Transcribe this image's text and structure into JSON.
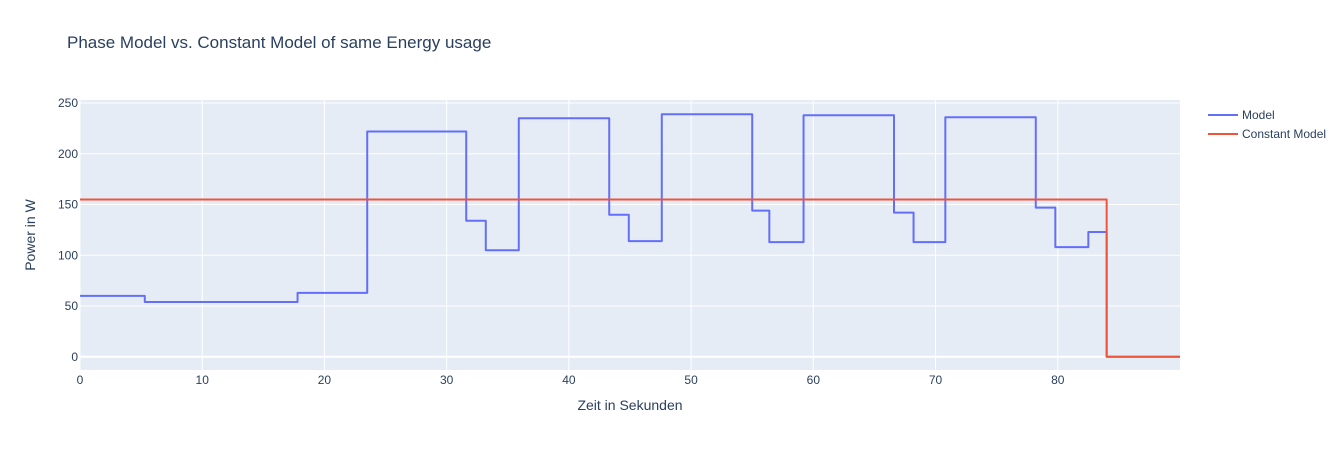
{
  "chart_data": {
    "type": "line",
    "title": "Phase Model vs. Constant Model of same Energy usage",
    "xlabel": "Zeit in Sekunden",
    "ylabel": "Power in W",
    "xlim": [
      0,
      90
    ],
    "ylim": [
      -13,
      253
    ],
    "x_ticks": [
      0,
      10,
      20,
      30,
      40,
      50,
      60,
      70,
      80
    ],
    "y_ticks": [
      0,
      50,
      100,
      150,
      200,
      250
    ],
    "grid": true,
    "legend_position": "top-right",
    "line_shape": "step",
    "series": [
      {
        "name": "Model",
        "color": "#636efa",
        "x": [
          0,
          5.3,
          17.8,
          23.5,
          31.6,
          33.2,
          35.9,
          43.3,
          44.9,
          47.6,
          55.0,
          56.4,
          59.2,
          66.6,
          68.2,
          70.8,
          78.2,
          79.8,
          82.5,
          84.0,
          90
        ],
        "y": [
          60,
          54,
          63,
          222,
          134,
          105,
          235,
          140,
          114,
          239,
          144,
          113,
          238,
          142,
          113,
          236,
          147,
          108,
          123,
          0,
          0
        ]
      },
      {
        "name": "Constant Model",
        "color": "#ef553b",
        "x": [
          0,
          84.0,
          90
        ],
        "y": [
          155,
          0,
          0
        ]
      }
    ]
  }
}
